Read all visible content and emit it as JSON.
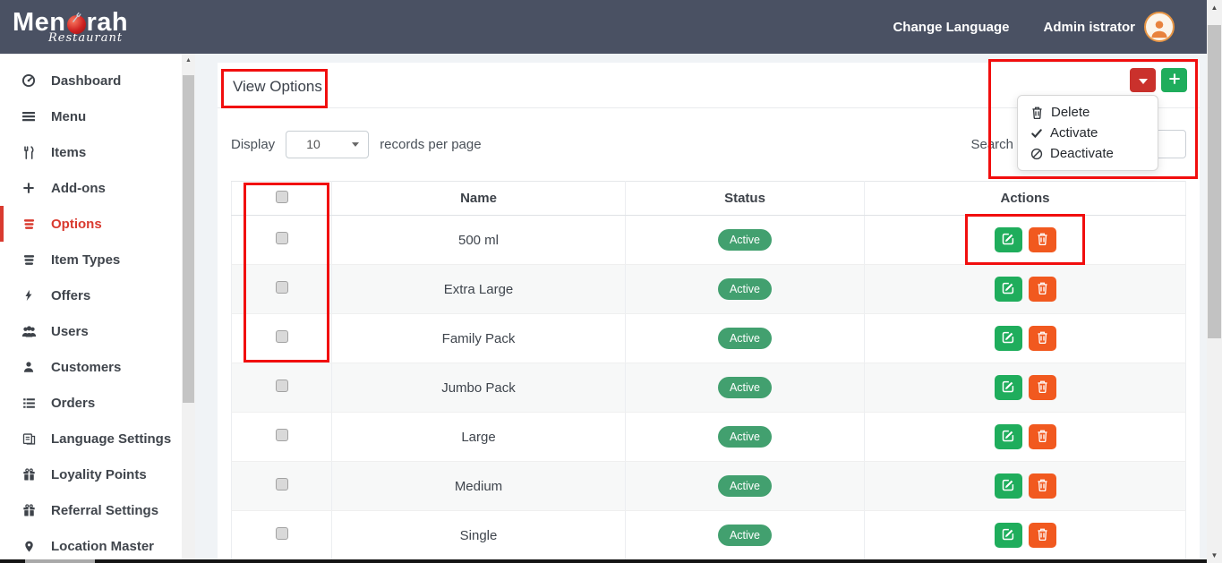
{
  "header": {
    "logo_part1": "Men",
    "logo_part2": "rah",
    "logo_subtitle": "Restaurant",
    "change_language_label": "Change Language",
    "user_name": "Admin istrator",
    "avatar_icon": "user-icon"
  },
  "sidebar": {
    "items": [
      {
        "label": "Dashboard",
        "icon": "dashboard-icon",
        "active": false
      },
      {
        "label": "Menu",
        "icon": "menu-icon",
        "active": false
      },
      {
        "label": "Items",
        "icon": "cutlery-icon",
        "active": false
      },
      {
        "label": "Add-ons",
        "icon": "plus-icon",
        "active": false
      },
      {
        "label": "Options",
        "icon": "list-icon",
        "active": true
      },
      {
        "label": "Item Types",
        "icon": "list-icon",
        "active": false
      },
      {
        "label": "Offers",
        "icon": "bolt-icon",
        "active": false
      },
      {
        "label": "Users",
        "icon": "users-icon",
        "active": false
      },
      {
        "label": "Customers",
        "icon": "user-icon",
        "active": false
      },
      {
        "label": "Orders",
        "icon": "orders-icon",
        "active": false
      },
      {
        "label": "Language Settings",
        "icon": "language-icon",
        "active": false
      },
      {
        "label": "Loyality Points",
        "icon": "gift-icon",
        "active": false
      },
      {
        "label": "Referral Settings",
        "icon": "gift-icon",
        "active": false
      },
      {
        "label": "Location Master",
        "icon": "pin-icon",
        "active": false
      }
    ]
  },
  "page": {
    "title": "View Options",
    "toolbar": {
      "display_label": "Display",
      "records_per_page_value": "10",
      "records_label": "records per page",
      "search_label": "Search",
      "search_value": ""
    },
    "bulk_buttons": {
      "dropdown_icon": "caret-down-icon",
      "add_icon": "plus-icon"
    },
    "dropdown_menu": [
      {
        "label": "Delete",
        "icon": "trash-icon"
      },
      {
        "label": "Activate",
        "icon": "check-icon"
      },
      {
        "label": "Deactivate",
        "icon": "ban-icon"
      }
    ],
    "table": {
      "headers": {
        "name": "Name",
        "status": "Status",
        "actions": "Actions"
      },
      "rows": [
        {
          "name": "500 ml",
          "status": "Active"
        },
        {
          "name": "Extra Large",
          "status": "Active"
        },
        {
          "name": "Family Pack",
          "status": "Active"
        },
        {
          "name": "Jumbo Pack",
          "status": "Active"
        },
        {
          "name": "Large",
          "status": "Active"
        },
        {
          "name": "Medium",
          "status": "Active"
        },
        {
          "name": "Single",
          "status": "Active"
        }
      ],
      "row_action_icons": [
        "edit-icon",
        "trash-icon"
      ]
    }
  },
  "colors": {
    "header-bg": "#4a5163",
    "accent-red": "#ca312c",
    "accent-green": "#1fad5c",
    "accent-orange": "#f1591f",
    "badge-green": "#42a06f",
    "active-item-red": "#d93a2f",
    "annotation-red": "#f10e0e"
  }
}
